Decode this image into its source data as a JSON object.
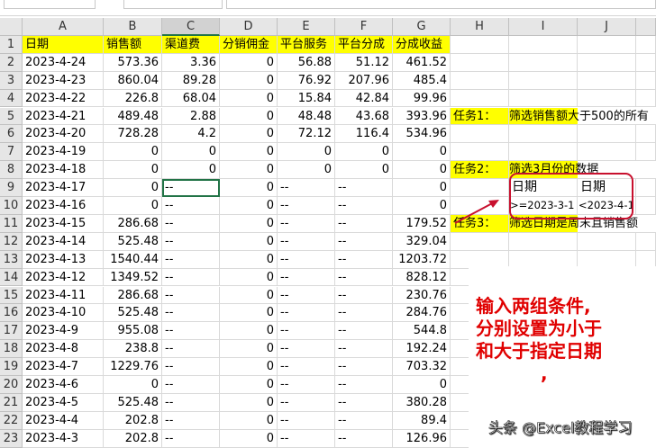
{
  "columns": [
    "A",
    "B",
    "C",
    "D",
    "E",
    "F",
    "G",
    "H",
    "I",
    "J"
  ],
  "headers": [
    "日期",
    "销售额",
    "渠道费",
    "分销佣金",
    "平台服务",
    "平台分成",
    "分成收益"
  ],
  "rows": [
    [
      "2023-4-24",
      "573.36",
      "3.36",
      "0",
      "56.88",
      "51.12",
      "461.52"
    ],
    [
      "2023-4-23",
      "860.04",
      "89.28",
      "0",
      "76.92",
      "207.96",
      "485.4"
    ],
    [
      "2023-4-22",
      "226.8",
      "68.04",
      "0",
      "15.84",
      "42.84",
      "99.96"
    ],
    [
      "2023-4-21",
      "489.48",
      "2.88",
      "0",
      "48.48",
      "43.68",
      "393.96"
    ],
    [
      "2023-4-20",
      "728.28",
      "4.2",
      "0",
      "72.12",
      "116.4",
      "534.96"
    ],
    [
      "2023-4-19",
      "0",
      "0",
      "0",
      "0",
      "0",
      "0"
    ],
    [
      "2023-4-18",
      "0",
      "0",
      "0",
      "0",
      "0",
      "0"
    ],
    [
      "2023-4-17",
      "0",
      "--",
      "0",
      "--",
      "--",
      "0"
    ],
    [
      "2023-4-16",
      "0",
      "--",
      "0",
      "--",
      "--",
      "0"
    ],
    [
      "2023-4-15",
      "286.68",
      "--",
      "0",
      "--",
      "--",
      "179.52"
    ],
    [
      "2023-4-14",
      "525.48",
      "--",
      "0",
      "--",
      "--",
      "329.04"
    ],
    [
      "2023-4-13",
      "1540.44",
      "--",
      "0",
      "--",
      "--",
      "1203.72"
    ],
    [
      "2023-4-12",
      "1349.52",
      "--",
      "0",
      "--",
      "--",
      "828.12"
    ],
    [
      "2023-4-11",
      "286.68",
      "--",
      "0",
      "--",
      "--",
      "230.76"
    ],
    [
      "2023-4-10",
      "525.48",
      "--",
      "0",
      "--",
      "--",
      "284.76"
    ],
    [
      "2023-4-9",
      "955.08",
      "--",
      "0",
      "--",
      "--",
      "544.8"
    ],
    [
      "2023-4-8",
      "238.8",
      "--",
      "0",
      "--",
      "--",
      "192.24"
    ],
    [
      "2023-4-7",
      "1229.76",
      "--",
      "0",
      "--",
      "--",
      "703.32"
    ],
    [
      "2023-4-6",
      "0",
      "--",
      "0",
      "--",
      "--",
      "0"
    ],
    [
      "2023-4-5",
      "525.48",
      "--",
      "0",
      "--",
      "--",
      "380.28"
    ],
    [
      "2023-4-4",
      "202.8",
      "--",
      "0",
      "--",
      "--",
      "89.4"
    ],
    [
      "2023-4-3",
      "202.8",
      "--",
      "0",
      "--",
      "--",
      "126.96"
    ]
  ],
  "selected_cell": "C9",
  "tasks": [
    {
      "row": 5,
      "label": "任务1：",
      "text": "筛选销售额大于500的所有"
    },
    {
      "row": 8,
      "label": "任务2：",
      "text": "筛选3月份的数据"
    },
    {
      "row": 11,
      "label": "任务3：",
      "text": "筛选日期是周末且销售额"
    }
  ],
  "criteria": {
    "headers": [
      "日期",
      "日期"
    ],
    "values": [
      ">=2023-3-1",
      "<2023-4-1"
    ]
  },
  "annotation": {
    "lines": [
      "输入两组条件,",
      "分别设置为小于",
      "和大于指定日期",
      ","
    ],
    "color": "#e00000"
  },
  "watermark": "头条 @Excel教程学习",
  "colors": {
    "highlight": "#ffff00",
    "selection": "#217346",
    "callout": "#c8102e"
  }
}
